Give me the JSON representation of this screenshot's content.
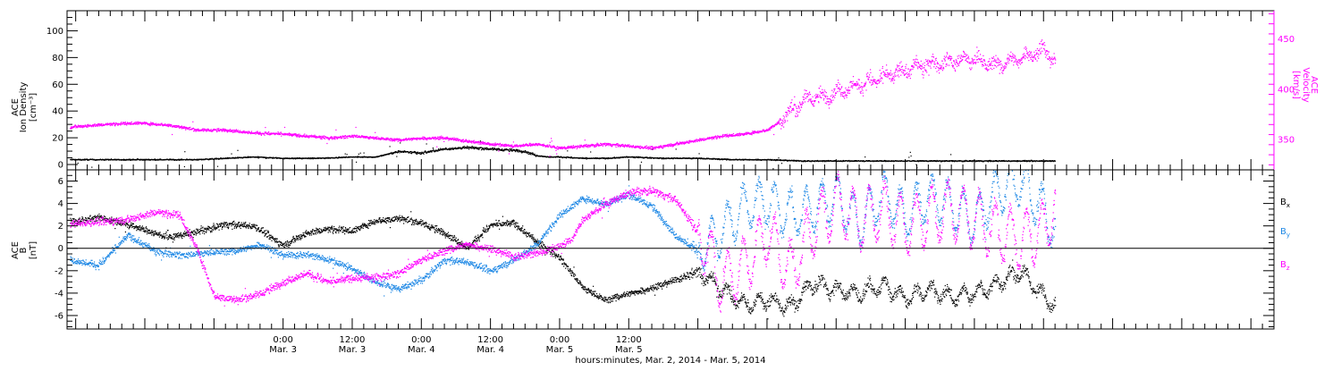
{
  "chart_data": [
    {
      "type": "scatter",
      "panel": "top",
      "ylabel_left": [
        "ACE",
        "Ion Density",
        "[cm⁻³]"
      ],
      "ylabel_right": [
        "ACE",
        "Velocity",
        "[km/s]"
      ],
      "ylim_left": [
        -4,
        115
      ],
      "yticks_left": [
        0,
        20,
        40,
        60,
        80,
        100
      ],
      "ylim_right": [
        320,
        478
      ],
      "yticks_right": [
        350,
        400,
        450
      ],
      "grid": false,
      "series": [
        {
          "key": "density",
          "color": "#000000",
          "axis": "left",
          "anchors": [
            [
              -37,
              4
            ],
            [
              -27,
              4
            ],
            [
              -15,
              4
            ],
            [
              -5,
              6
            ],
            [
              0,
              5
            ],
            [
              6,
              5
            ],
            [
              12,
              6
            ],
            [
              16,
              6
            ],
            [
              20,
              10
            ],
            [
              24,
              9
            ],
            [
              28,
              12
            ],
            [
              32,
              13
            ],
            [
              36,
              12
            ],
            [
              40,
              11
            ],
            [
              42,
              10
            ],
            [
              44,
              7
            ],
            [
              46,
              6
            ],
            [
              48,
              6
            ],
            [
              52,
              5
            ],
            [
              56,
              5
            ],
            [
              60,
              6
            ],
            [
              66,
              5
            ],
            [
              72,
              5
            ],
            [
              78,
              4
            ],
            [
              84,
              4
            ],
            [
              90,
              3
            ],
            [
              96,
              3
            ],
            [
              102,
              3
            ],
            [
              108,
              3
            ],
            [
              114,
              3
            ],
            [
              118,
              3
            ],
            [
              124,
              3
            ],
            [
              132,
              3
            ],
            [
              134,
              3
            ]
          ]
        },
        {
          "key": "velocity",
          "color": "#ff00ff",
          "axis": "right",
          "anchors": [
            [
              -37,
              363
            ],
            [
              -30,
              366
            ],
            [
              -25,
              367
            ],
            [
              -20,
              365
            ],
            [
              -15,
              360
            ],
            [
              -10,
              360
            ],
            [
              -5,
              357
            ],
            [
              0,
              356
            ],
            [
              4,
              354
            ],
            [
              8,
              352
            ],
            [
              12,
              354
            ],
            [
              16,
              352
            ],
            [
              20,
              350
            ],
            [
              24,
              352
            ],
            [
              28,
              352
            ],
            [
              32,
              349
            ],
            [
              36,
              346
            ],
            [
              40,
              344
            ],
            [
              44,
              346
            ],
            [
              48,
              342
            ],
            [
              52,
              344
            ],
            [
              56,
              346
            ],
            [
              60,
              344
            ],
            [
              64,
              342
            ],
            [
              68,
              346
            ],
            [
              72,
              350
            ],
            [
              76,
              354
            ],
            [
              80,
              356
            ],
            [
              84,
              360
            ],
            [
              86,
              368
            ],
            [
              88,
              378
            ],
            [
              90,
              388
            ],
            [
              92,
              394
            ],
            [
              94,
              392
            ],
            [
              96,
              398
            ],
            [
              100,
              405
            ],
            [
              104,
              412
            ],
            [
              108,
              420
            ],
            [
              112,
              425
            ],
            [
              116,
              428
            ],
            [
              120,
              430
            ],
            [
              124,
              424
            ],
            [
              128,
              432
            ],
            [
              132,
              440
            ],
            [
              134,
              428
            ]
          ]
        }
      ]
    },
    {
      "type": "scatter",
      "panel": "bottom",
      "ylabel_left": [
        "ACE",
        "B",
        "[nT]"
      ],
      "ylim": [
        -7.2,
        7.0
      ],
      "yticks": [
        -6,
        -4,
        -2,
        0,
        2,
        4,
        6
      ],
      "zero_line": true,
      "grid": false,
      "legend_position": "right",
      "series": [
        {
          "key": "bx",
          "label_main": "B",
          "label_sub": "x",
          "color": "#000000",
          "anchors": [
            [
              -37,
              2.4
            ],
            [
              -32,
              2.8
            ],
            [
              -26,
              2
            ],
            [
              -20,
              1
            ],
            [
              -15,
              1.5
            ],
            [
              -10,
              2.2
            ],
            [
              -5,
              2
            ],
            [
              0,
              0.3
            ],
            [
              4,
              1.4
            ],
            [
              8,
              1.8
            ],
            [
              12,
              1.6
            ],
            [
              16,
              2.5
            ],
            [
              20,
              2.7
            ],
            [
              24,
              2.3
            ],
            [
              28,
              1.4
            ],
            [
              32,
              0.1
            ],
            [
              36,
              2.1
            ],
            [
              40,
              2.3
            ],
            [
              44,
              0.6
            ],
            [
              48,
              -0.8
            ],
            [
              52,
              -3.5
            ],
            [
              56,
              -4.6
            ],
            [
              60,
              -4
            ],
            [
              64,
              -3.5
            ],
            [
              68,
              -2.8
            ],
            [
              72,
              -2
            ],
            [
              76,
              -3.6
            ],
            [
              80,
              -5
            ],
            [
              84,
              -4.6
            ],
            [
              88,
              -5.2
            ],
            [
              92,
              -3
            ],
            [
              96,
              -3.7
            ],
            [
              100,
              -4
            ],
            [
              104,
              -3.2
            ],
            [
              108,
              -4.4
            ],
            [
              112,
              -3.6
            ],
            [
              116,
              -4.3
            ],
            [
              120,
              -3.9
            ],
            [
              124,
              -3.1
            ],
            [
              128,
              -2
            ],
            [
              132,
              -4.3
            ],
            [
              134,
              -5
            ]
          ],
          "noise": 0.45,
          "osc": 0.6
        },
        {
          "key": "by",
          "label_main": "B",
          "label_sub": "y",
          "color": "#1e88e5",
          "anchors": [
            [
              -37,
              -1
            ],
            [
              -32,
              -1.5
            ],
            [
              -27,
              1.2
            ],
            [
              -22,
              -0.3
            ],
            [
              -17,
              -0.6
            ],
            [
              -12,
              -0.3
            ],
            [
              -8,
              -0.2
            ],
            [
              -4,
              0.4
            ],
            [
              0,
              -0.6
            ],
            [
              4,
              -0.5
            ],
            [
              8,
              -1
            ],
            [
              12,
              -1.8
            ],
            [
              16,
              -3
            ],
            [
              20,
              -3.6
            ],
            [
              24,
              -2.8
            ],
            [
              28,
              -1
            ],
            [
              32,
              -1.2
            ],
            [
              36,
              -2
            ],
            [
              40,
              -1
            ],
            [
              44,
              0.4
            ],
            [
              48,
              3
            ],
            [
              52,
              4.5
            ],
            [
              56,
              4
            ],
            [
              60,
              4.8
            ],
            [
              64,
              3.8
            ],
            [
              68,
              1.2
            ],
            [
              72,
              -0.2
            ],
            [
              76,
              1.5
            ],
            [
              80,
              3.8
            ],
            [
              84,
              4.2
            ],
            [
              88,
              3
            ],
            [
              92,
              3.6
            ],
            [
              96,
              4.6
            ],
            [
              100,
              2.2
            ],
            [
              104,
              5
            ],
            [
              108,
              3
            ],
            [
              112,
              4.7
            ],
            [
              116,
              3.9
            ],
            [
              120,
              2.4
            ],
            [
              124,
              5.2
            ],
            [
              128,
              6
            ],
            [
              132,
              3.4
            ],
            [
              134,
              1.5
            ]
          ],
          "noise": 0.45,
          "osc": 2.0
        },
        {
          "key": "bz",
          "label_main": "B",
          "label_sub": "z",
          "color": "#ff00ff",
          "anchors": [
            [
              -37,
              2.2
            ],
            [
              -32,
              2.4
            ],
            [
              -27,
              2.6
            ],
            [
              -22,
              3.3
            ],
            [
              -18,
              3
            ],
            [
              -15,
              0
            ],
            [
              -12,
              -4.2
            ],
            [
              -8,
              -4.6
            ],
            [
              -4,
              -4
            ],
            [
              0,
              -3
            ],
            [
              4,
              -2.2
            ],
            [
              8,
              -3
            ],
            [
              12,
              -2.6
            ],
            [
              16,
              -2.6
            ],
            [
              20,
              -2.2
            ],
            [
              24,
              -1
            ],
            [
              28,
              -0.2
            ],
            [
              32,
              0.4
            ],
            [
              36,
              0
            ],
            [
              40,
              -0.7
            ],
            [
              44,
              -0.4
            ],
            [
              48,
              0.2
            ],
            [
              50,
              0.8
            ],
            [
              52,
              2.6
            ],
            [
              56,
              4
            ],
            [
              60,
              5
            ],
            [
              64,
              5.2
            ],
            [
              68,
              4.4
            ],
            [
              72,
              1.5
            ],
            [
              76,
              -3
            ],
            [
              80,
              -1.5
            ],
            [
              84,
              1.5
            ],
            [
              88,
              -2
            ],
            [
              92,
              2
            ],
            [
              96,
              4
            ],
            [
              100,
              2.5
            ],
            [
              104,
              3.6
            ],
            [
              108,
              2
            ],
            [
              112,
              3
            ],
            [
              116,
              3.4
            ],
            [
              120,
              2.5
            ],
            [
              124,
              1.6
            ],
            [
              128,
              0.7
            ],
            [
              132,
              1.6
            ],
            [
              134,
              4
            ]
          ],
          "noise": 0.5,
          "osc": 2.5
        }
      ]
    }
  ],
  "x_axis": {
    "xlim_hours": [
      -37.5,
      172
    ],
    "xlabel": "hours:minutes, Mar. 2, 2014 - Mar. 5, 2014",
    "ticks": [
      {
        "h": 0,
        "time": "0:00",
        "date": "Mar. 3"
      },
      {
        "h": 12,
        "time": "12:00",
        "date": "Mar. 3"
      },
      {
        "h": 24,
        "time": "0:00",
        "date": "Mar. 4"
      },
      {
        "h": 36,
        "time": "12:00",
        "date": "Mar. 4"
      },
      {
        "h": 48,
        "time": "0:00",
        "date": "Mar. 5"
      },
      {
        "h": 60,
        "time": "12:00",
        "date": "Mar. 5"
      }
    ]
  }
}
